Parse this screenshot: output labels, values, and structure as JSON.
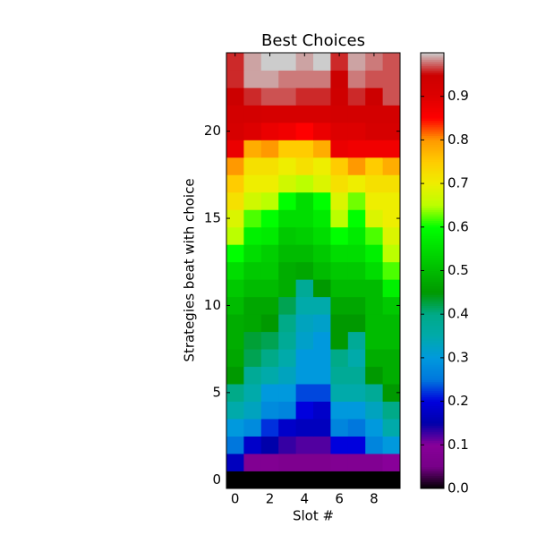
{
  "chart_data": {
    "type": "heatmap",
    "title": "Best Choices",
    "xlabel": "Slot #",
    "ylabel": "Strategies beat with choice",
    "colormap": "nipy_spectral",
    "xlim": [
      -0.5,
      9.5
    ],
    "ylim": [
      -0.5,
      24.5
    ],
    "xticks": [
      0,
      2,
      4,
      6,
      8
    ],
    "yticks": [
      0,
      5,
      10,
      15,
      20
    ],
    "clim": [
      0,
      1
    ],
    "cticks": [
      {
        "value": 0,
        "label": "0.0"
      },
      0.1,
      0.2,
      0.3,
      0.4,
      0.5,
      0.6,
      0.7,
      0.8,
      0.9
    ],
    "z": [
      [
        0,
        0,
        0,
        0,
        0,
        0,
        0,
        0,
        0,
        0
      ],
      [
        0.17,
        0.08,
        0.08,
        0.07,
        0.07,
        0.07,
        0.08,
        0.08,
        0.08,
        0.1
      ],
      [
        0.25,
        0.18,
        0.15,
        0.13,
        0.12,
        0.12,
        0.2,
        0.2,
        0.27,
        0.3
      ],
      [
        0.3,
        0.28,
        0.22,
        0.18,
        0.17,
        0.17,
        0.27,
        0.25,
        0.3,
        0.35
      ],
      [
        0.35,
        0.33,
        0.28,
        0.27,
        0.2,
        0.18,
        0.3,
        0.3,
        0.33,
        0.4
      ],
      [
        0.4,
        0.35,
        0.3,
        0.3,
        0.23,
        0.23,
        0.35,
        0.35,
        0.38,
        0.45
      ],
      [
        0.45,
        0.38,
        0.35,
        0.33,
        0.3,
        0.3,
        0.38,
        0.38,
        0.45,
        0.48
      ],
      [
        0.47,
        0.42,
        0.4,
        0.35,
        0.3,
        0.3,
        0.4,
        0.35,
        0.48,
        0.48
      ],
      [
        0.48,
        0.43,
        0.42,
        0.38,
        0.32,
        0.3,
        0.45,
        0.38,
        0.5,
        0.5
      ],
      [
        0.48,
        0.47,
        0.45,
        0.4,
        0.33,
        0.32,
        0.45,
        0.45,
        0.5,
        0.5
      ],
      [
        0.5,
        0.47,
        0.47,
        0.42,
        0.35,
        0.35,
        0.47,
        0.47,
        0.5,
        0.52
      ],
      [
        0.52,
        0.5,
        0.5,
        0.48,
        0.38,
        0.45,
        0.5,
        0.5,
        0.5,
        0.58
      ],
      [
        0.55,
        0.52,
        0.52,
        0.48,
        0.47,
        0.5,
        0.52,
        0.52,
        0.55,
        0.62
      ],
      [
        0.6,
        0.55,
        0.53,
        0.5,
        0.5,
        0.52,
        0.55,
        0.55,
        0.58,
        0.65
      ],
      [
        0.65,
        0.58,
        0.57,
        0.52,
        0.53,
        0.55,
        0.6,
        0.57,
        0.62,
        0.68
      ],
      [
        0.68,
        0.62,
        0.6,
        0.55,
        0.55,
        0.57,
        0.65,
        0.6,
        0.68,
        0.7
      ],
      [
        0.72,
        0.67,
        0.65,
        0.6,
        0.55,
        0.6,
        0.68,
        0.63,
        0.7,
        0.7
      ],
      [
        0.75,
        0.7,
        0.7,
        0.67,
        0.65,
        0.68,
        0.72,
        0.7,
        0.72,
        0.72
      ],
      [
        0.8,
        0.72,
        0.72,
        0.7,
        0.72,
        0.7,
        0.75,
        0.8,
        0.75,
        0.78
      ],
      [
        0.88,
        0.78,
        0.8,
        0.75,
        0.75,
        0.78,
        0.88,
        0.87,
        0.87,
        0.87
      ],
      [
        0.92,
        0.9,
        0.88,
        0.87,
        0.85,
        0.88,
        0.9,
        0.9,
        0.92,
        0.92
      ],
      [
        0.93,
        0.93,
        0.92,
        0.92,
        0.92,
        0.92,
        0.93,
        0.93,
        0.93,
        0.93
      ],
      [
        0.95,
        0.96,
        0.97,
        0.97,
        0.96,
        0.96,
        0.94,
        0.96,
        0.95,
        0.97
      ],
      [
        0.96,
        0.99,
        0.99,
        0.98,
        0.98,
        0.98,
        0.95,
        0.98,
        0.97,
        0.97
      ],
      [
        0.96,
        0.99,
        1.0,
        1.0,
        0.99,
        1.0,
        0.96,
        0.99,
        0.98,
        0.97
      ]
    ]
  }
}
